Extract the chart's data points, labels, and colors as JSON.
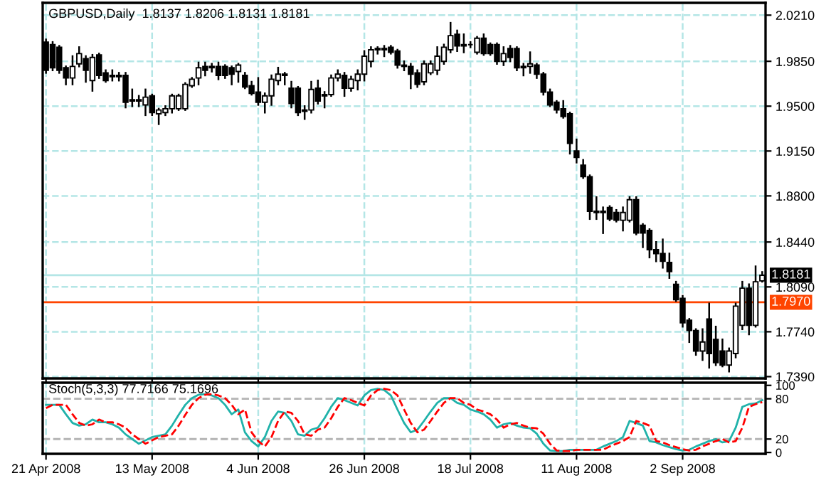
{
  "chart_data": [
    {
      "type": "candlestick",
      "title": "GBPUSD,Daily  1.8137 1.8206 1.8131 1.8181",
      "color": "#000000",
      "grid": true,
      "tick_labels": "y",
      "categories": [
        null,
        null,
        null,
        null,
        null,
        null,
        null,
        null,
        null,
        null,
        null,
        null,
        null,
        null,
        null,
        null,
        null,
        null,
        null,
        null,
        null,
        null,
        null,
        null,
        null,
        null,
        null,
        null,
        null,
        null,
        null,
        null,
        null,
        null,
        null,
        null,
        null,
        null,
        null,
        null,
        null,
        null,
        null,
        null,
        null,
        null,
        null,
        null,
        null,
        null,
        null,
        null,
        null,
        null,
        null,
        null,
        null,
        null,
        null,
        null,
        null,
        null,
        null,
        null,
        null,
        null,
        null,
        null,
        null,
        null,
        null,
        null,
        null,
        null,
        null,
        null,
        null,
        null,
        null,
        null,
        null,
        null,
        null,
        null,
        null,
        null,
        null,
        null,
        null,
        null,
        null,
        null,
        null,
        null,
        null,
        null,
        null,
        null,
        null,
        null,
        null,
        null,
        null,
        null,
        null,
        null,
        null,
        null,
        null
      ],
      "ylim": [
        1.7376,
        2.0306
      ],
      "yticks": [
        {
          "value": 2.021,
          "label": "2.0210"
        },
        {
          "value": 1.985,
          "label": "1.9850"
        },
        {
          "value": 1.95,
          "label": "1.9500"
        },
        {
          "value": 1.915,
          "label": "1.9150"
        },
        {
          "value": 1.88,
          "label": "1.8800"
        },
        {
          "value": 1.844,
          "label": "1.8440"
        },
        {
          "value": 1.809,
          "label": "1.8090"
        },
        {
          "value": 1.774,
          "label": "1.7740"
        },
        {
          "value": 1.739,
          "label": "1.7390"
        }
      ],
      "ref_lines": [
        {
          "axis": "y",
          "value": 1.8181,
          "label": "1.8181",
          "color": "#b4e6e6"
        },
        {
          "axis": "y",
          "value": 1.797,
          "label": "1.7970",
          "color": "#ff4500"
        }
      ],
      "ohlc": [
        [
          2.0,
          2.002,
          1.976,
          1.978
        ],
        [
          1.998,
          2.0,
          1.978,
          1.98
        ],
        [
          1.996,
          1.997,
          1.976,
          1.978
        ],
        [
          1.98,
          1.981,
          1.967,
          1.972
        ],
        [
          1.972,
          1.989,
          1.967,
          1.981
        ],
        [
          1.983,
          1.996,
          1.981,
          1.991
        ],
        [
          1.987,
          1.989,
          1.969,
          1.978
        ],
        [
          1.97,
          1.99,
          1.962,
          1.988
        ],
        [
          1.99,
          1.991,
          1.972,
          1.974
        ],
        [
          1.976,
          1.978,
          1.969,
          1.97
        ],
        [
          1.974,
          1.978,
          1.97,
          1.973
        ],
        [
          1.974,
          1.976,
          1.97,
          1.973
        ],
        [
          1.974,
          1.976,
          1.949,
          1.953
        ],
        [
          1.955,
          1.963,
          1.95,
          1.954
        ],
        [
          1.955,
          1.958,
          1.95,
          1.954
        ],
        [
          1.951,
          1.963,
          1.943,
          1.957
        ],
        [
          1.958,
          1.959,
          1.943,
          1.945
        ],
        [
          1.944,
          1.948,
          1.936,
          1.947
        ],
        [
          1.945,
          1.95,
          1.943,
          1.948
        ],
        [
          1.948,
          1.959,
          1.945,
          1.958
        ],
        [
          1.948,
          1.959,
          1.947,
          1.958
        ],
        [
          1.948,
          1.968,
          1.947,
          1.967
        ],
        [
          1.966,
          1.972,
          1.965,
          1.971
        ],
        [
          1.972,
          1.984,
          1.967,
          1.98
        ],
        [
          1.981,
          1.984,
          1.974,
          1.978
        ],
        [
          1.98,
          1.983,
          1.977,
          1.981
        ],
        [
          1.981,
          1.984,
          1.971,
          1.974
        ],
        [
          1.981,
          1.982,
          1.972,
          1.974
        ],
        [
          1.98,
          1.981,
          1.967,
          1.975
        ],
        [
          1.977,
          1.983,
          1.969,
          1.982
        ],
        [
          1.974,
          1.976,
          1.964,
          1.965
        ],
        [
          1.966,
          1.969,
          1.959,
          1.96
        ],
        [
          1.961,
          1.972,
          1.951,
          1.953
        ],
        [
          1.953,
          1.96,
          1.945,
          1.958
        ],
        [
          1.958,
          1.974,
          1.951,
          1.971
        ],
        [
          1.97,
          1.98,
          1.967,
          1.975
        ],
        [
          1.975,
          1.976,
          1.967,
          1.974
        ],
        [
          1.964,
          1.969,
          1.949,
          1.952
        ],
        [
          1.964,
          1.965,
          1.943,
          1.945
        ],
        [
          1.947,
          1.95,
          1.94,
          1.946
        ],
        [
          1.947,
          1.969,
          1.945,
          1.963
        ],
        [
          1.964,
          1.97,
          1.952,
          1.954
        ],
        [
          1.958,
          1.961,
          1.949,
          1.959
        ],
        [
          1.959,
          1.974,
          1.958,
          1.972
        ],
        [
          1.972,
          1.978,
          1.97,
          1.975
        ],
        [
          1.974,
          1.976,
          1.958,
          1.964
        ],
        [
          1.964,
          1.973,
          1.962,
          1.971
        ],
        [
          1.97,
          1.978,
          1.963,
          1.975
        ],
        [
          1.975,
          1.993,
          1.97,
          1.989
        ],
        [
          1.985,
          1.996,
          1.981,
          1.994
        ],
        [
          1.995,
          1.996,
          1.991,
          1.994
        ],
        [
          1.994,
          1.997,
          1.989,
          1.995
        ],
        [
          1.996,
          1.997,
          1.991,
          1.992
        ],
        [
          1.993,
          1.994,
          1.98,
          1.982
        ],
        [
          1.982,
          1.985,
          1.978,
          1.981
        ],
        [
          1.981,
          1.983,
          1.964,
          1.975
        ],
        [
          1.976,
          1.978,
          1.965,
          1.967
        ],
        [
          1.969,
          1.985,
          1.967,
          1.983
        ],
        [
          1.976,
          1.985,
          1.975,
          1.983
        ],
        [
          1.978,
          1.996,
          1.975,
          1.989
        ],
        [
          1.985,
          1.998,
          1.983,
          1.996
        ],
        [
          1.994,
          2.015,
          1.992,
          2.005
        ],
        [
          2.006,
          2.009,
          1.993,
          1.997
        ],
        [
          1.998,
          2.006,
          1.992,
          1.997
        ],
        [
          1.998,
          2.0,
          1.996,
          1.998
        ],
        [
          1.992,
          2.004,
          1.991,
          2.003
        ],
        [
          2.003,
          2.006,
          1.99,
          1.991
        ],
        [
          1.998,
          1.999,
          1.99,
          1.991
        ],
        [
          1.998,
          1.999,
          1.983,
          1.985
        ],
        [
          1.985,
          1.996,
          1.982,
          1.991
        ],
        [
          1.995,
          1.997,
          1.985,
          1.988
        ],
        [
          1.995,
          1.996,
          1.978,
          1.98
        ],
        [
          1.981,
          1.983,
          1.974,
          1.98
        ],
        [
          1.981,
          1.992,
          1.976,
          1.983
        ],
        [
          1.982,
          1.983,
          1.972,
          1.975
        ],
        [
          1.975,
          1.976,
          1.959,
          1.961
        ],
        [
          1.961,
          1.963,
          1.95,
          1.951
        ],
        [
          1.953,
          1.954,
          1.945,
          1.947
        ],
        [
          1.948,
          1.954,
          1.941,
          1.942
        ],
        [
          1.944,
          1.945,
          1.913,
          1.921
        ],
        [
          1.915,
          1.924,
          1.906,
          1.91
        ],
        [
          1.904,
          1.908,
          1.894,
          1.895
        ],
        [
          1.895,
          1.896,
          1.862,
          1.868
        ],
        [
          1.868,
          1.879,
          1.862,
          1.867
        ],
        [
          1.868,
          1.871,
          1.851,
          1.867
        ],
        [
          1.871,
          1.872,
          1.861,
          1.862
        ],
        [
          1.867,
          1.869,
          1.86,
          1.861
        ],
        [
          1.861,
          1.871,
          1.853,
          1.867
        ],
        [
          1.861,
          1.879,
          1.86,
          1.877
        ],
        [
          1.877,
          1.879,
          1.85,
          1.851
        ],
        [
          1.857,
          1.858,
          1.84,
          1.851
        ],
        [
          1.853,
          1.854,
          1.832,
          1.838
        ],
        [
          1.838,
          1.844,
          1.829,
          1.835
        ],
        [
          1.835,
          1.846,
          1.824,
          1.829
        ],
        [
          1.828,
          1.835,
          1.816,
          1.821
        ],
        [
          1.811,
          1.813,
          1.798,
          1.799
        ],
        [
          1.8,
          1.802,
          1.778,
          1.781
        ],
        [
          1.783,
          1.784,
          1.766,
          1.775
        ],
        [
          1.775,
          1.776,
          1.756,
          1.759
        ],
        [
          1.759,
          1.776,
          1.752,
          1.766
        ],
        [
          1.784,
          1.796,
          1.746,
          1.757
        ],
        [
          1.768,
          1.778,
          1.748,
          1.75
        ],
        [
          1.759,
          1.768,
          1.747,
          1.748
        ],
        [
          1.748,
          1.761,
          1.743,
          1.759
        ],
        [
          1.757,
          1.796,
          1.754,
          1.794
        ],
        [
          1.779,
          1.813,
          1.776,
          1.808
        ],
        [
          1.808,
          1.811,
          1.772,
          1.779
        ],
        [
          1.779,
          1.825,
          1.778,
          1.813
        ],
        [
          1.8137,
          1.8206,
          1.8131,
          1.8181
        ]
      ]
    },
    {
      "type": "line",
      "title": "Stoch(5,3,3) 77.7166 75.1696",
      "grid": "x",
      "categories": [
        "21 Apr 2008",
        null,
        null,
        null,
        null,
        null,
        null,
        null,
        null,
        null,
        null,
        null,
        null,
        null,
        null,
        null,
        "13 May 2008",
        null,
        null,
        null,
        null,
        null,
        null,
        null,
        null,
        null,
        null,
        null,
        null,
        null,
        null,
        null,
        "4 Jun 2008",
        null,
        null,
        null,
        null,
        null,
        null,
        null,
        null,
        null,
        null,
        null,
        null,
        null,
        null,
        null,
        "26 Jun 2008",
        null,
        null,
        null,
        null,
        null,
        null,
        null,
        null,
        null,
        null,
        null,
        null,
        null,
        null,
        null,
        "18 Jul 2008",
        null,
        null,
        null,
        null,
        null,
        null,
        null,
        null,
        null,
        null,
        null,
        null,
        null,
        null,
        null,
        "11 Aug 2008",
        null,
        null,
        null,
        null,
        null,
        null,
        null,
        null,
        null,
        null,
        null,
        null,
        null,
        null,
        null,
        "2 Sep 2008",
        null,
        null,
        null,
        null,
        null,
        null,
        null,
        null,
        null,
        null,
        null,
        null
      ],
      "ylim": [
        -2,
        104
      ],
      "yticks": [
        0,
        20,
        80,
        100
      ],
      "ref_lines": [
        {
          "axis": "y",
          "value": 80,
          "color": "#b4b4b4",
          "line_style": "dashed"
        },
        {
          "axis": "y",
          "value": 20,
          "color": "#b4b4b4",
          "line_style": "dashed"
        }
      ],
      "series": [
        {
          "color": "#20b2aa",
          "line_style": "solid",
          "values": [
            71,
            71,
            71,
            57,
            44,
            40,
            42,
            49,
            45,
            45,
            42,
            37,
            27,
            20,
            13,
            18,
            23,
            25,
            27,
            40,
            56,
            71,
            81,
            86,
            87,
            85,
            81,
            71,
            57,
            64,
            30,
            17,
            9,
            23,
            47,
            61,
            59,
            47,
            27,
            25,
            34,
            37,
            51,
            68,
            81,
            78,
            74,
            70,
            85,
            93,
            95,
            93,
            85,
            64,
            44,
            30,
            34,
            47,
            61,
            74,
            81,
            81,
            74,
            71,
            64,
            61,
            57,
            49,
            37,
            42,
            44,
            40,
            37,
            36,
            28,
            13,
            3,
            2,
            2,
            4,
            4,
            4,
            4,
            4,
            9,
            13,
            17,
            23,
            47,
            44,
            40,
            17,
            15,
            11,
            8,
            5,
            3,
            4,
            9,
            13,
            17,
            20,
            15,
            17,
            37,
            68,
            72,
            73,
            78
          ]
        },
        {
          "color": "#ff0000",
          "line_style": "dashed",
          "values": [
            66,
            71,
            71,
            71,
            57,
            44,
            40,
            42,
            49,
            45,
            45,
            42,
            37,
            27,
            20,
            13,
            18,
            23,
            25,
            27,
            40,
            56,
            71,
            81,
            86,
            87,
            85,
            81,
            71,
            57,
            64,
            30,
            17,
            9,
            23,
            47,
            61,
            59,
            47,
            27,
            25,
            34,
            37,
            51,
            68,
            81,
            78,
            74,
            70,
            85,
            93,
            95,
            93,
            85,
            64,
            44,
            30,
            34,
            47,
            61,
            74,
            81,
            81,
            74,
            71,
            64,
            61,
            57,
            49,
            37,
            42,
            44,
            40,
            37,
            36,
            28,
            13,
            3,
            2,
            2,
            4,
            4,
            4,
            4,
            4,
            9,
            13,
            17,
            23,
            47,
            44,
            40,
            17,
            15,
            11,
            8,
            5,
            3,
            4,
            9,
            13,
            17,
            20,
            15,
            17,
            37,
            68,
            72,
            75
          ]
        }
      ]
    }
  ]
}
